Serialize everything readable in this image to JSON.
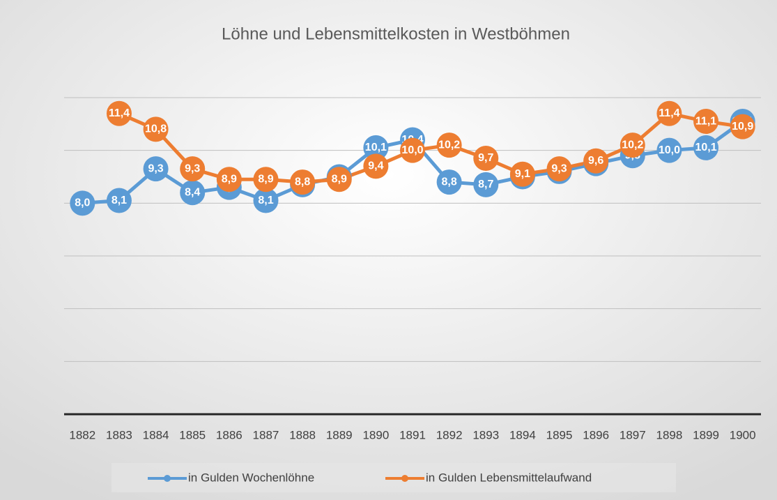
{
  "chart_data": {
    "type": "line",
    "title": "Löhne und Lebensmittelkosten in Westböhmen",
    "categories": [
      "1882",
      "1883",
      "1884",
      "1885",
      "1886",
      "1887",
      "1888",
      "1889",
      "1890",
      "1891",
      "1892",
      "1893",
      "1894",
      "1895",
      "1896",
      "1897",
      "1898",
      "1899",
      "1900"
    ],
    "series": [
      {
        "name": "in Gulden Wochenlöhne",
        "color": "#5b9bd5",
        "values": [
          8.0,
          8.1,
          9.3,
          8.4,
          8.6,
          8.1,
          8.7,
          9.0,
          10.1,
          10.4,
          8.8,
          8.7,
          9.0,
          9.2,
          9.5,
          9.8,
          10.0,
          10.1,
          11.1
        ],
        "value_labels": [
          "8,0",
          "8,1",
          "9,3",
          "8,4",
          "8,6",
          "8,1",
          "8,7",
          "9,0",
          "10,1",
          "10,4",
          "8,8",
          "8,7",
          "9,0",
          "9,2",
          "9,5",
          "9,8",
          "10,0",
          "10,1",
          "11,1"
        ]
      },
      {
        "name": "in Gulden Lebensmittelaufwand",
        "color": "#ed7d31",
        "values": [
          null,
          11.4,
          10.8,
          9.3,
          8.9,
          8.9,
          8.8,
          8.9,
          9.4,
          10.0,
          10.2,
          9.7,
          9.1,
          9.3,
          9.6,
          10.2,
          11.4,
          11.1,
          10.9
        ],
        "value_labels": [
          null,
          "11,4",
          "10,8",
          "9,3",
          "8,9",
          "8,9",
          "8,8",
          "8,9",
          "9,4",
          "10,0",
          "10,2",
          "9,7",
          "9,1",
          "9,3",
          "9,6",
          "10,2",
          "11,4",
          "11,1",
          "10,9"
        ]
      }
    ],
    "ylim": [
      0,
      12
    ],
    "yticks": [
      0,
      2,
      4,
      6,
      8,
      10,
      12
    ],
    "grid": true,
    "legend": "bottom"
  }
}
